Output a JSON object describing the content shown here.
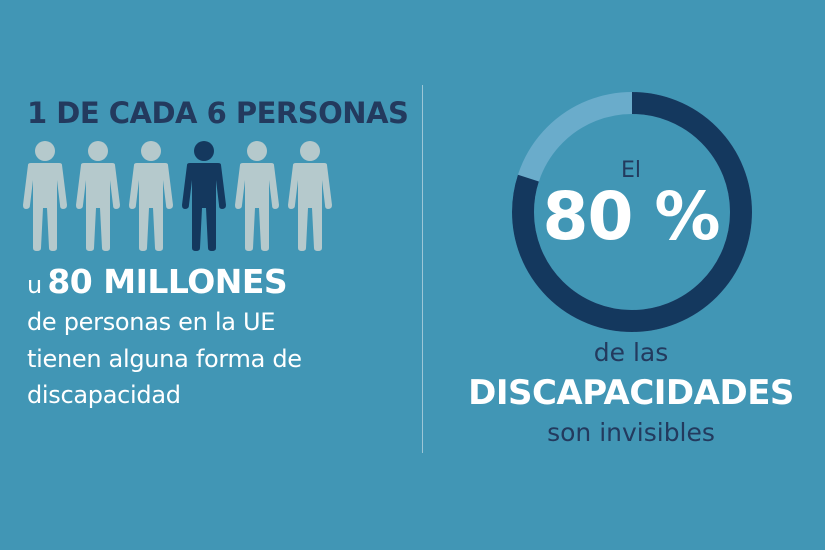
{
  "left": {
    "headline": "1 DE CADA 6 PERSONAS",
    "people": {
      "total": 6,
      "highlighted_index": 3,
      "icon": "person-icon"
    },
    "big_prefix": "u",
    "big_number": "80 MILLONES",
    "lines": [
      "de personas en la UE",
      "tienen alguna forma de",
      "discapacidad"
    ]
  },
  "right": {
    "el": "El",
    "percent_label": "80 %",
    "percent_value": 80,
    "de_las": "de las",
    "discapacidades": "DISCAPACIDADES",
    "son_invisibles": "son invisibles"
  },
  "colors": {
    "background": "#4196b5",
    "navy": "#14385e",
    "title": "#233a5e",
    "person_light": "#b5c9cc",
    "ring_light": "#6aaccb"
  }
}
